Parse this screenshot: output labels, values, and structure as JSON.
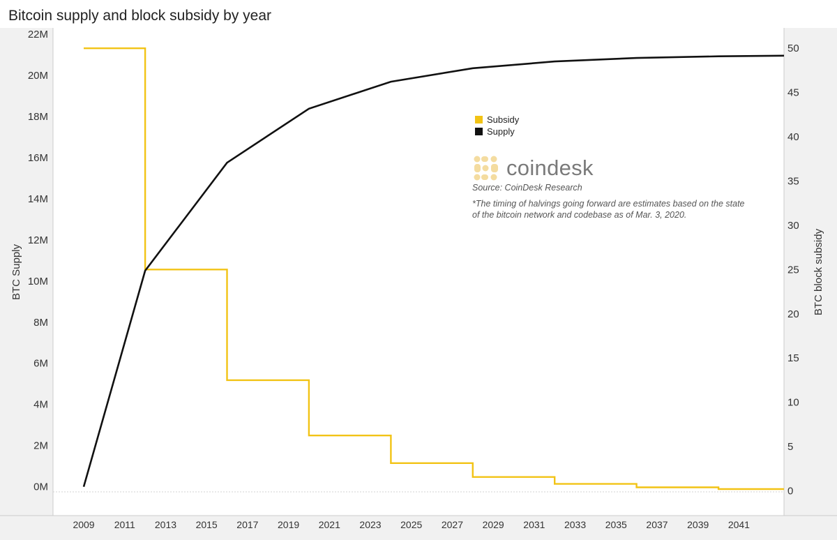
{
  "chart_data": {
    "type": "line",
    "title": "Bitcoin supply and block subsidy by year",
    "x_ticks": [
      "2009",
      "2011",
      "2013",
      "2015",
      "2017",
      "2019",
      "2021",
      "2023",
      "2025",
      "2027",
      "2029",
      "2031",
      "2033",
      "2035",
      "2037",
      "2039",
      "2041"
    ],
    "xlim": [
      2007.5,
      2043.2
    ],
    "y_left": {
      "label": "BTC Supply",
      "lim": [
        -1.4,
        22.3
      ],
      "ticks": [
        "0M",
        "2M",
        "4M",
        "6M",
        "8M",
        "10M",
        "12M",
        "14M",
        "16M",
        "18M",
        "20M",
        "22M"
      ]
    },
    "y_right": {
      "label": "BTC block subsidy",
      "lim": [
        -2.8,
        52.3
      ],
      "ticks": [
        "0",
        "5",
        "10",
        "15",
        "20",
        "25",
        "30",
        "35",
        "40",
        "45",
        "50"
      ]
    },
    "series": [
      {
        "name": "Subsidy",
        "axis": "right",
        "color": "#f2c315",
        "shape": "step",
        "x": [
          2009,
          2012,
          2012,
          2016,
          2016,
          2020,
          2020,
          2024,
          2024,
          2028,
          2028,
          2032,
          2032,
          2036,
          2036,
          2040,
          2040,
          2043.2
        ],
        "y": [
          50,
          50,
          25,
          25,
          12.5,
          12.5,
          6.25,
          6.25,
          3.125,
          3.125,
          1.5625,
          1.5625,
          0.78125,
          0.78125,
          0.390625,
          0.390625,
          0.1953125,
          0.1953125
        ]
      },
      {
        "name": "Supply",
        "axis": "left",
        "color": "#111111",
        "shape": "line",
        "x": [
          2009,
          2012,
          2016,
          2020,
          2024,
          2028,
          2032,
          2036,
          2040,
          2043.2
        ],
        "y": [
          0,
          10.5,
          15.75,
          18.375,
          19.6875,
          20.34,
          20.67,
          20.84,
          20.92,
          20.95
        ]
      }
    ],
    "legend": {
      "placement": "center-right",
      "items": [
        "Subsidy",
        "Supply"
      ]
    },
    "grid": false
  },
  "annotations": {
    "logo_text": "coindesk",
    "source": "Source: CoinDesk Research",
    "note": "*The timing of halvings going forward are estimates based on the state of the bitcoin network and codebase as of Mar. 3, 2020."
  },
  "colors": {
    "subsidy": "#f2c315",
    "supply": "#111111",
    "axis_band": "#f1f1f1",
    "logo": "#f4dca0"
  }
}
